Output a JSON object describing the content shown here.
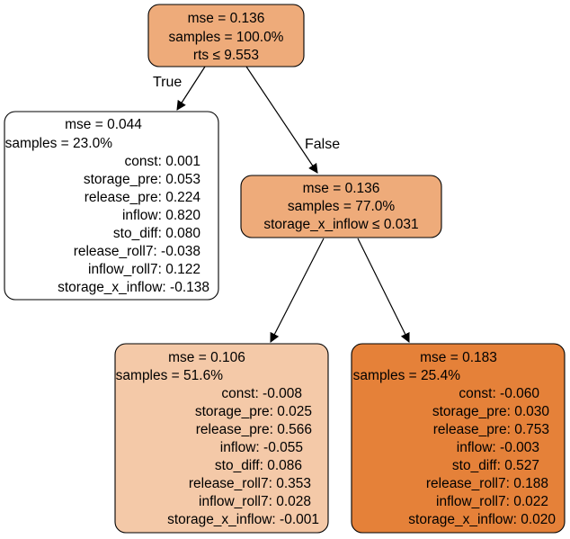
{
  "colors": {
    "root": "#eeab7a",
    "n1": "#ffffff",
    "n2": "#eeab7a",
    "n3": "#f4c9a8",
    "n4": "#e58139",
    "edge": "#000000"
  },
  "edges": {
    "true_label": "True",
    "false_label": "False"
  },
  "nodes": {
    "root": {
      "lines": [
        "mse = 0.136",
        "samples = 100.0%",
        "rts ≤ 9.553"
      ]
    },
    "n1": {
      "lines": [
        "mse = 0.044",
        "samples = 23.0%",
        "const: 0.001",
        "storage_pre: 0.053",
        "release_pre: 0.224",
        "inflow: 0.820",
        "sto_diff: 0.080",
        "release_roll7: -0.038",
        "inflow_roll7: 0.122",
        "storage_x_inflow: -0.138"
      ]
    },
    "n2": {
      "lines": [
        "mse = 0.136",
        "samples = 77.0%",
        "storage_x_inflow ≤ 0.031"
      ]
    },
    "n3": {
      "lines": [
        "mse = 0.106",
        "samples = 51.6%",
        "const: -0.008",
        "storage_pre: 0.025",
        "release_pre: 0.566",
        "inflow: -0.055",
        "sto_diff: 0.086",
        "release_roll7: 0.353",
        "inflow_roll7: 0.028",
        "storage_x_inflow: -0.001"
      ]
    },
    "n4": {
      "lines": [
        "mse = 0.183",
        "samples = 25.4%",
        "const: -0.060",
        "storage_pre: 0.030",
        "release_pre: 0.753",
        "inflow: -0.003",
        "sto_diff: 0.527",
        "release_roll7: 0.188",
        "inflow_roll7: 0.022",
        "storage_x_inflow: 0.020"
      ]
    }
  }
}
